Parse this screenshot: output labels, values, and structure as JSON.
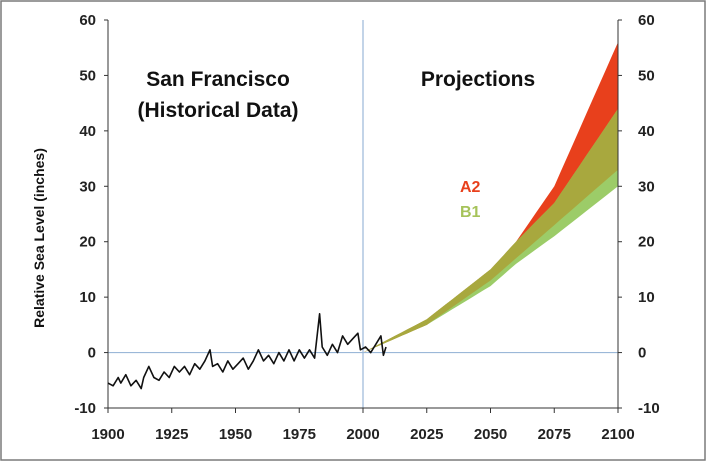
{
  "chart_data": {
    "type": "area",
    "title": "",
    "xlabel": "",
    "ylabel": "Relative Sea Level (inches)",
    "xlim": [
      1900,
      2100
    ],
    "ylim": [
      -10,
      60
    ],
    "x_ticks": [
      "1900",
      "1925",
      "1950",
      "1975",
      "2000",
      "2025",
      "2050",
      "2075",
      "2100"
    ],
    "y_ticks": [
      "-10",
      "0",
      "10",
      "20",
      "30",
      "40",
      "50",
      "60"
    ],
    "grid": false,
    "reference_lines": {
      "x": 2000,
      "y": 0,
      "color": "#9bb8d8"
    },
    "annotations": {
      "historical_title_line1": "San Francisco",
      "historical_title_line2": "(Historical Data)",
      "projections_title": "Projections"
    },
    "series": [
      {
        "name": "Historical",
        "kind": "line",
        "color": "#111111",
        "points": [
          [
            1900,
            -5.5
          ],
          [
            1902,
            -6.0
          ],
          [
            1904,
            -4.5
          ],
          [
            1905,
            -5.5
          ],
          [
            1907,
            -4.0
          ],
          [
            1909,
            -6.0
          ],
          [
            1911,
            -5.0
          ],
          [
            1913,
            -6.5
          ],
          [
            1914,
            -4.5
          ],
          [
            1916,
            -2.5
          ],
          [
            1918,
            -4.5
          ],
          [
            1920,
            -5.0
          ],
          [
            1922,
            -3.5
          ],
          [
            1924,
            -4.5
          ],
          [
            1926,
            -2.5
          ],
          [
            1928,
            -3.5
          ],
          [
            1930,
            -2.5
          ],
          [
            1932,
            -4.0
          ],
          [
            1934,
            -2.0
          ],
          [
            1936,
            -3.0
          ],
          [
            1938,
            -1.5
          ],
          [
            1940,
            0.5
          ],
          [
            1941,
            -2.5
          ],
          [
            1943,
            -2.0
          ],
          [
            1945,
            -3.5
          ],
          [
            1947,
            -1.5
          ],
          [
            1949,
            -3.0
          ],
          [
            1951,
            -2.0
          ],
          [
            1953,
            -1.0
          ],
          [
            1955,
            -3.0
          ],
          [
            1957,
            -1.5
          ],
          [
            1959,
            0.5
          ],
          [
            1961,
            -1.5
          ],
          [
            1963,
            -0.5
          ],
          [
            1965,
            -2.0
          ],
          [
            1967,
            0.0
          ],
          [
            1969,
            -1.5
          ],
          [
            1971,
            0.5
          ],
          [
            1973,
            -1.5
          ],
          [
            1975,
            0.5
          ],
          [
            1977,
            -1.0
          ],
          [
            1979,
            0.5
          ],
          [
            1981,
            -1.0
          ],
          [
            1983,
            7.0
          ],
          [
            1984,
            1.0
          ],
          [
            1986,
            -0.5
          ],
          [
            1988,
            1.5
          ],
          [
            1990,
            0.0
          ],
          [
            1992,
            3.0
          ],
          [
            1994,
            1.5
          ],
          [
            1996,
            2.5
          ],
          [
            1998,
            3.5
          ],
          [
            1999,
            0.5
          ],
          [
            2001,
            1.0
          ],
          [
            2003,
            0.0
          ],
          [
            2005,
            1.5
          ],
          [
            2007,
            3.0
          ],
          [
            2008,
            -0.5
          ],
          [
            2009,
            1.0
          ]
        ]
      },
      {
        "name": "A2",
        "kind": "band",
        "color": "#e8401c",
        "x": [
          2000,
          2025,
          2050,
          2060,
          2075,
          2100
        ],
        "lower": [
          0,
          5,
          13,
          17,
          23,
          33
        ],
        "upper": [
          0,
          6,
          15,
          20,
          30,
          56
        ]
      },
      {
        "name": "B1",
        "kind": "band",
        "color": "#9ccc68",
        "x": [
          2000,
          2025,
          2050,
          2060,
          2075,
          2100
        ],
        "lower": [
          0,
          5,
          12,
          16,
          21,
          30
        ],
        "upper": [
          0,
          6,
          15,
          20,
          27,
          44
        ]
      }
    ],
    "overlap_color": "#a8a83e"
  }
}
